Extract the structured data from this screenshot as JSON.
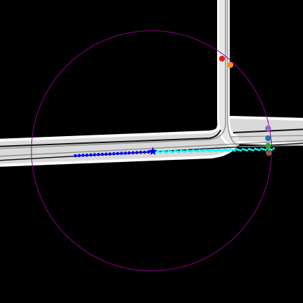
{
  "title": "",
  "legend": [],
  "colors": {
    "background": "#000000",
    "road_edge": "#ffffff",
    "road_fill": "#d9d9d9",
    "lane_line": "#8c8c8c",
    "range_circle": "#8b008b",
    "history_track": "#0000ff",
    "ego_marker": "#0000ff",
    "future_track": "#00ffff"
  },
  "icons": {
    "ego_marker": "star-icon",
    "agent_marker": "circle-dot-icon"
  },
  "agents": [
    {
      "id": "agent-red",
      "color": "#e02020"
    },
    {
      "id": "agent-orange",
      "color": "#ff8c1a"
    },
    {
      "id": "agent-purple",
      "color": "#9467bd"
    },
    {
      "id": "agent-blue",
      "color": "#1f77b4"
    },
    {
      "id": "agent-green",
      "color": "#2ca02c"
    },
    {
      "id": "agent-brown",
      "color": "#8c564b"
    }
  ]
}
